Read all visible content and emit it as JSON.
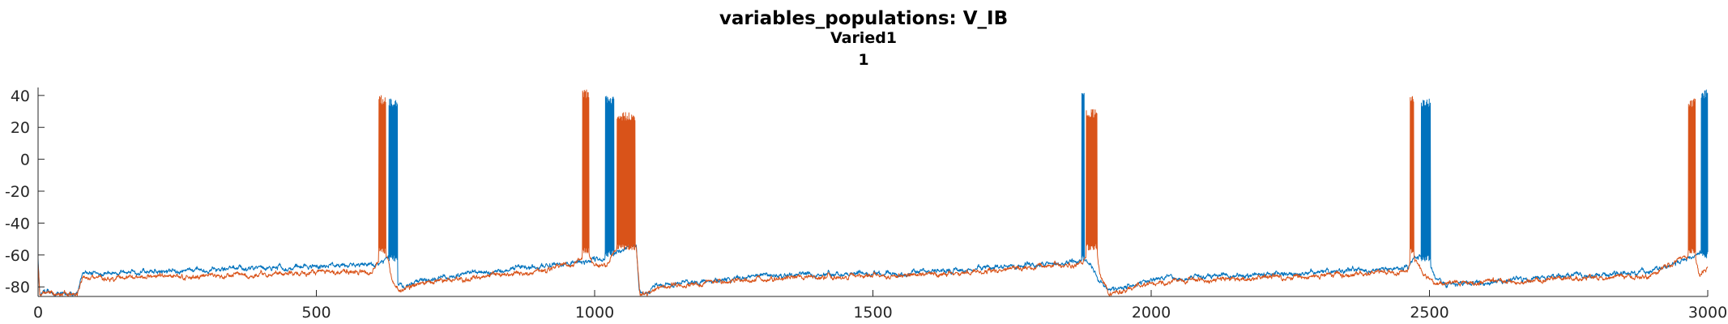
{
  "chart_data": {
    "type": "line",
    "title": "variables_populations: V_IB",
    "subtitle": "Varied1",
    "subtitle2": "1",
    "xlabel": "",
    "ylabel": "",
    "xlim": [
      0,
      3000
    ],
    "ylim": [
      -86,
      45
    ],
    "xticks": [
      "0",
      "500",
      "1000",
      "1500",
      "2000",
      "2500",
      "3000"
    ],
    "yticks": [
      "-80",
      "-60",
      "-40",
      "-20",
      "0",
      "20",
      "40"
    ],
    "grid": false,
    "legend": "none",
    "series": [
      {
        "color": "#0072BD",
        "baseline": [
          [
            0,
            -62
          ],
          [
            3,
            -84
          ],
          [
            70,
            -84
          ],
          [
            80,
            -72
          ],
          [
            600,
            -66
          ],
          [
            620,
            -64
          ],
          [
            625,
            -62
          ],
          [
            640,
            -62
          ],
          [
            645,
            -79
          ],
          [
            660,
            -80
          ],
          [
            700,
            -75
          ],
          [
            900,
            -67
          ],
          [
            1020,
            -62
          ],
          [
            1060,
            -54
          ],
          [
            1075,
            -54
          ],
          [
            1080,
            -83
          ],
          [
            1090,
            -84
          ],
          [
            1110,
            -79
          ],
          [
            1300,
            -73
          ],
          [
            1600,
            -71
          ],
          [
            1870,
            -64
          ],
          [
            1880,
            -63
          ],
          [
            1890,
            -66
          ],
          [
            1905,
            -74
          ],
          [
            1920,
            -82
          ],
          [
            1950,
            -80
          ],
          [
            2000,
            -75
          ],
          [
            2300,
            -71
          ],
          [
            2460,
            -68
          ],
          [
            2475,
            -61
          ],
          [
            2485,
            -60
          ],
          [
            2495,
            -61
          ],
          [
            2510,
            -73
          ],
          [
            2530,
            -79
          ],
          [
            2700,
            -74
          ],
          [
            2900,
            -71
          ],
          [
            2950,
            -64
          ],
          [
            2990,
            -60
          ],
          [
            3000,
            -60
          ]
        ],
        "bursts": [
          [
            630,
            646,
            -60,
            38
          ],
          [
            1019,
            1035,
            -57,
            40
          ],
          [
            1875,
            1880,
            -60,
            45
          ],
          [
            2485,
            2502,
            -60,
            38
          ],
          [
            2988,
            3000,
            -58,
            44
          ]
        ]
      },
      {
        "color": "#D95319",
        "baseline": [
          [
            0,
            -66
          ],
          [
            3,
            -84
          ],
          [
            70,
            -84
          ],
          [
            80,
            -75
          ],
          [
            600,
            -70
          ],
          [
            610,
            -65
          ],
          [
            628,
            -62
          ],
          [
            635,
            -75
          ],
          [
            650,
            -82
          ],
          [
            700,
            -77
          ],
          [
            900,
            -70
          ],
          [
            980,
            -63
          ],
          [
            990,
            -61
          ],
          [
            995,
            -64
          ],
          [
            1000,
            -66
          ],
          [
            1020,
            -67
          ],
          [
            1030,
            -61
          ],
          [
            1040,
            -56
          ],
          [
            1075,
            -54
          ],
          [
            1082,
            -85
          ],
          [
            1095,
            -84
          ],
          [
            1120,
            -80
          ],
          [
            1300,
            -75
          ],
          [
            1600,
            -72
          ],
          [
            1870,
            -66
          ],
          [
            1880,
            -62
          ],
          [
            1888,
            -54
          ],
          [
            1902,
            -54
          ],
          [
            1908,
            -72
          ],
          [
            1925,
            -84
          ],
          [
            1960,
            -81
          ],
          [
            2000,
            -77
          ],
          [
            2300,
            -73
          ],
          [
            2460,
            -70
          ],
          [
            2470,
            -60
          ],
          [
            2478,
            -64
          ],
          [
            2490,
            -73
          ],
          [
            2510,
            -78
          ],
          [
            2700,
            -76
          ],
          [
            2900,
            -73
          ],
          [
            2955,
            -62
          ],
          [
            2975,
            -61
          ],
          [
            2985,
            -72
          ],
          [
            3000,
            -68
          ]
        ],
        "bursts": [
          [
            612,
            625,
            -55,
            40
          ],
          [
            978,
            990,
            -55,
            44
          ],
          [
            1040,
            1073,
            -53,
            30
          ],
          [
            1883,
            1903,
            -53,
            32
          ],
          [
            2465,
            2472,
            -55,
            40
          ],
          [
            2965,
            2978,
            -55,
            38
          ]
        ]
      }
    ]
  }
}
